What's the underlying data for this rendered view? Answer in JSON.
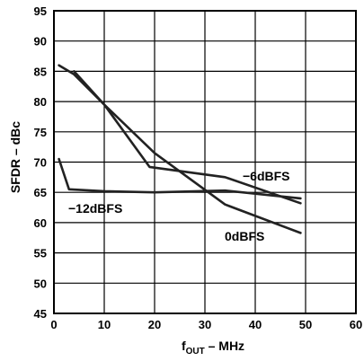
{
  "chart_data": {
    "type": "line",
    "xlabel_main": "f",
    "xlabel_sub": "OUT",
    "xlabel_rest": " – MHz",
    "ylabel": "SFDR – dBc",
    "xlim": [
      0,
      60
    ],
    "ylim": [
      45,
      95
    ],
    "x_ticks": [
      0,
      10,
      20,
      30,
      40,
      50,
      60
    ],
    "y_ticks": [
      45,
      50,
      55,
      60,
      65,
      70,
      75,
      80,
      85,
      90,
      95
    ],
    "grid": true,
    "series": [
      {
        "name": "0dBFS",
        "x": [
          1,
          4,
          10,
          20,
          34,
          49
        ],
        "y": [
          86,
          84.5,
          79.5,
          71.5,
          63,
          58.3
        ]
      },
      {
        "name": "−6dBFS",
        "x": [
          4,
          10,
          19,
          34,
          49
        ],
        "y": [
          85,
          79.5,
          69.2,
          67.5,
          63.2
        ]
      },
      {
        "name": "−12dBFS",
        "x": [
          1,
          3,
          10,
          20,
          34,
          49
        ],
        "y": [
          70.5,
          65.5,
          65.2,
          65,
          65.3,
          64
        ]
      }
    ]
  }
}
